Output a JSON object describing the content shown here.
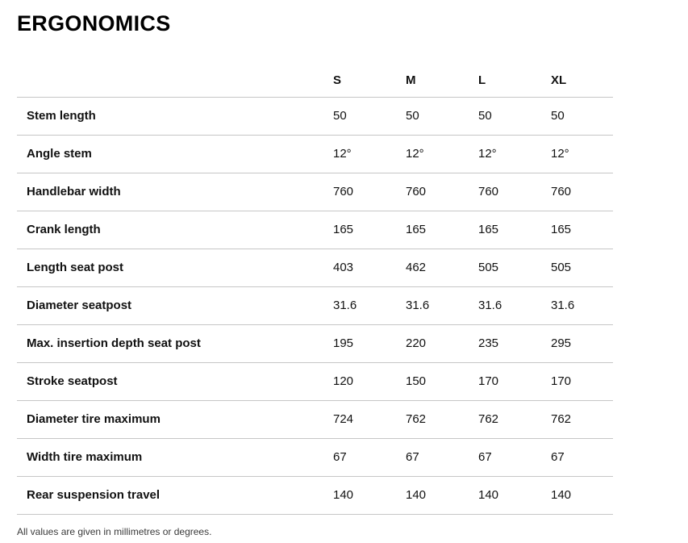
{
  "page": {
    "title": "ERGONOMICS",
    "footnote": "All values are given in millimetres or degrees."
  },
  "table": {
    "columns": [
      "S",
      "M",
      "L",
      "XL"
    ],
    "rows": [
      {
        "label": "Stem length",
        "values": [
          "50",
          "50",
          "50",
          "50"
        ]
      },
      {
        "label": "Angle stem",
        "values": [
          "12°",
          "12°",
          "12°",
          "12°"
        ]
      },
      {
        "label": "Handlebar width",
        "values": [
          "760",
          "760",
          "760",
          "760"
        ]
      },
      {
        "label": "Crank length",
        "values": [
          "165",
          "165",
          "165",
          "165"
        ]
      },
      {
        "label": "Length seat post",
        "values": [
          "403",
          "462",
          "505",
          "505"
        ]
      },
      {
        "label": "Diameter seatpost",
        "values": [
          "31.6",
          "31.6",
          "31.6",
          "31.6"
        ]
      },
      {
        "label": "Max. insertion depth seat post",
        "values": [
          "195",
          "220",
          "235",
          "295"
        ]
      },
      {
        "label": "Stroke seatpost",
        "values": [
          "120",
          "150",
          "170",
          "170"
        ]
      },
      {
        "label": "Diameter tire maximum",
        "values": [
          "724",
          "762",
          "762",
          "762"
        ]
      },
      {
        "label": "Width tire maximum",
        "values": [
          "67",
          "67",
          "67",
          "67"
        ]
      },
      {
        "label": "Rear suspension travel",
        "values": [
          "140",
          "140",
          "140",
          "140"
        ]
      }
    ]
  },
  "colors": {
    "line": "#c6c6c6",
    "text": "#111111",
    "footnote": "#3a3a3a"
  }
}
